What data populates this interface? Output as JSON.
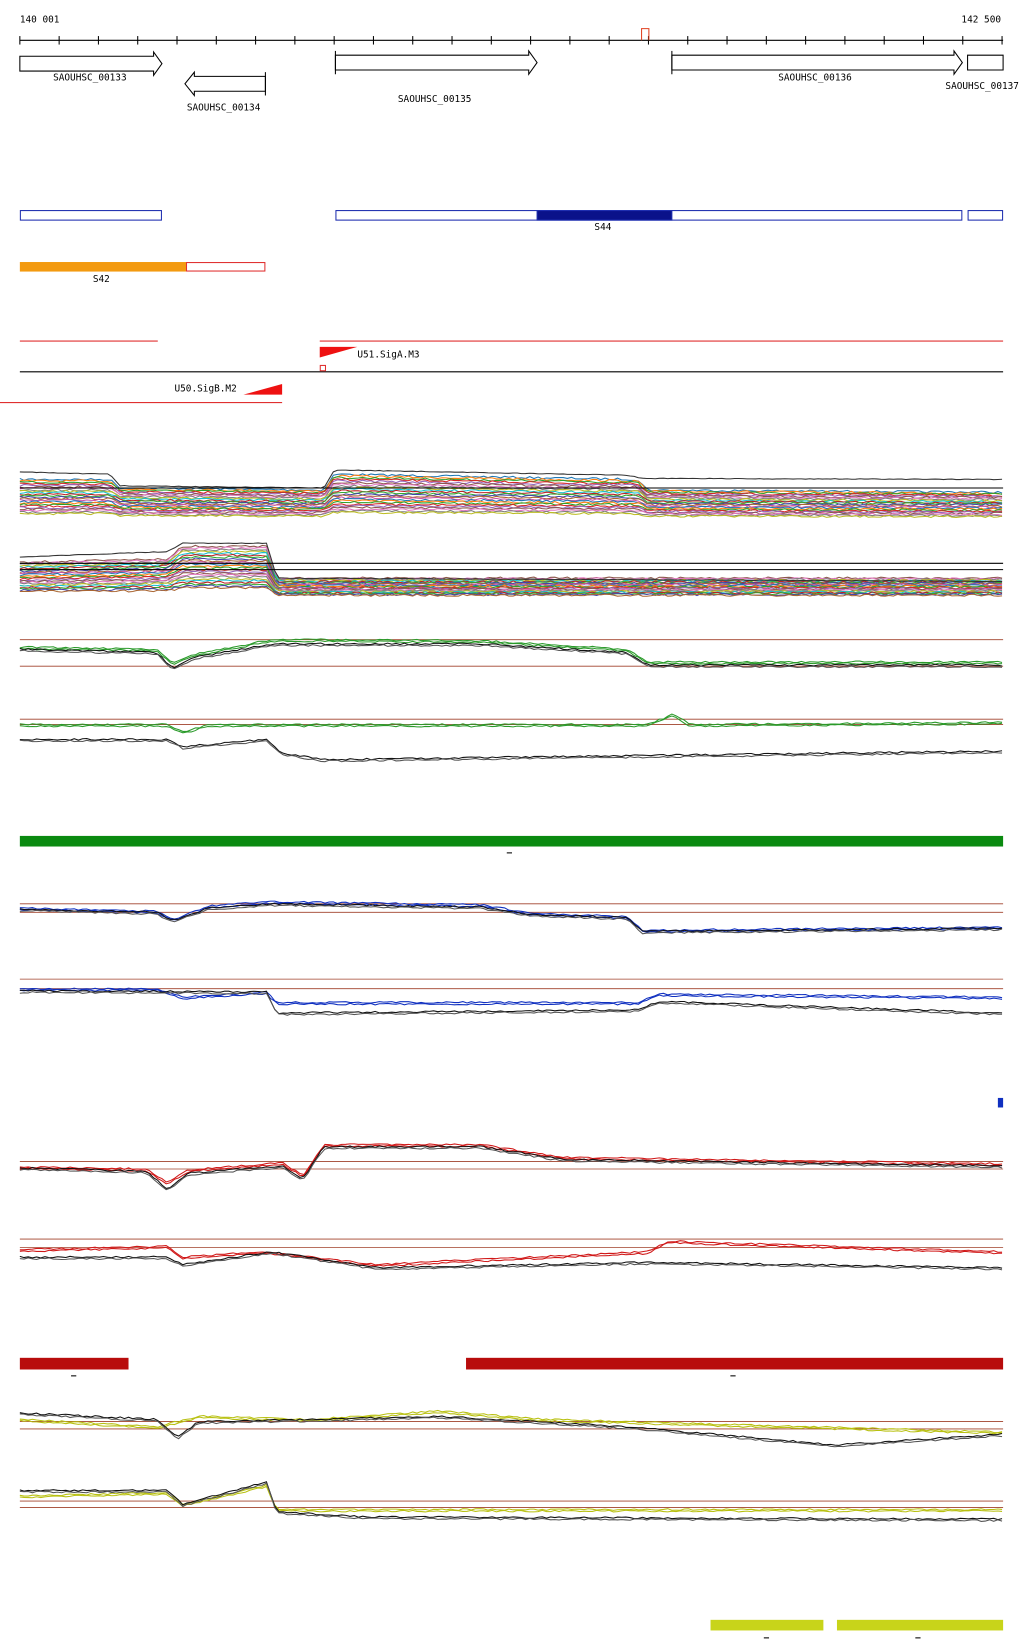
{
  "ruler": {
    "start": "140 001",
    "end": "142 500"
  },
  "genes": [
    {
      "label": "SAOUHSC_00133"
    },
    {
      "label": "SAOUHSC_00134"
    },
    {
      "label": "SAOUHSC_00135"
    },
    {
      "label": "SAOUHSC_00136"
    },
    {
      "label": "SAOUHSC_00137"
    }
  ],
  "regions": [
    {
      "label": "S44"
    },
    {
      "label": "S42"
    }
  ],
  "promoters": [
    {
      "label": "U51.SigA.M3"
    },
    {
      "label": "U50.SigB.M2"
    }
  ]
}
